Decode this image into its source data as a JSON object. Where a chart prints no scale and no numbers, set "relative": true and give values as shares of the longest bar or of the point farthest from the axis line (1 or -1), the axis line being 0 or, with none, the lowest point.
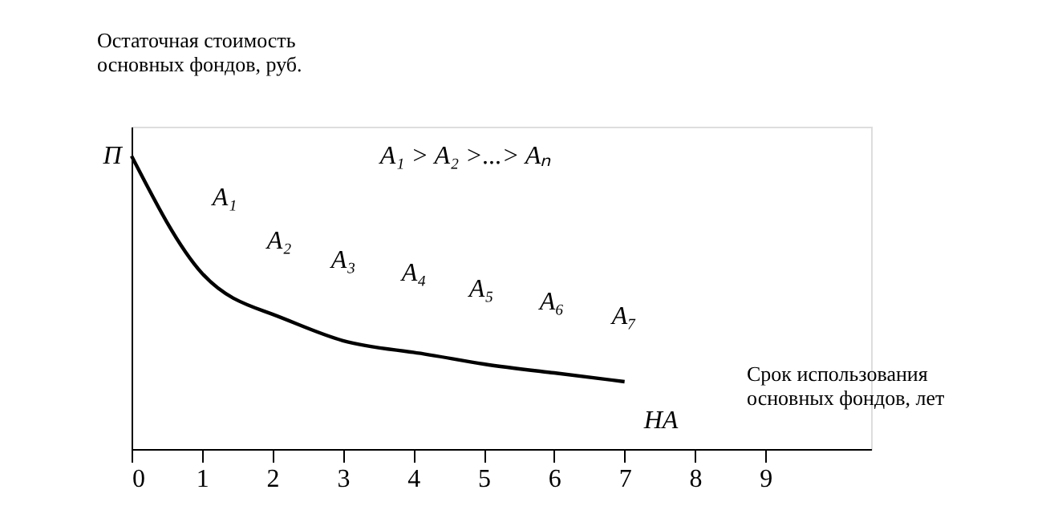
{
  "chart_data": {
    "type": "line",
    "relative": true,
    "xlabel": "Срок использования основных фондов, лет",
    "ylabel": "Остаточная стоимость основных фондов, руб.",
    "x": [
      0,
      1,
      2,
      3,
      4,
      5,
      6,
      7
    ],
    "series": [
      {
        "color": "#000000",
        "values": [
          1,
          0.6,
          0.46,
          0.37,
          0.33,
          0.29,
          0.26,
          0.23
        ]
      }
    ],
    "xlim": [
      0,
      10.5
    ],
    "xticks": [
      0,
      1,
      2,
      3,
      4,
      5,
      6,
      7,
      8,
      9
    ],
    "tick_labels": "x",
    "grid": false,
    "marker": "none",
    "line_style": "solid",
    "annotations": [
      "A₁ > A₂ >...> Aₙ",
      "П",
      "A₁",
      "A₂",
      "A₃",
      "A₄",
      "A₅",
      "A₆",
      "A₇",
      "НА"
    ]
  }
}
